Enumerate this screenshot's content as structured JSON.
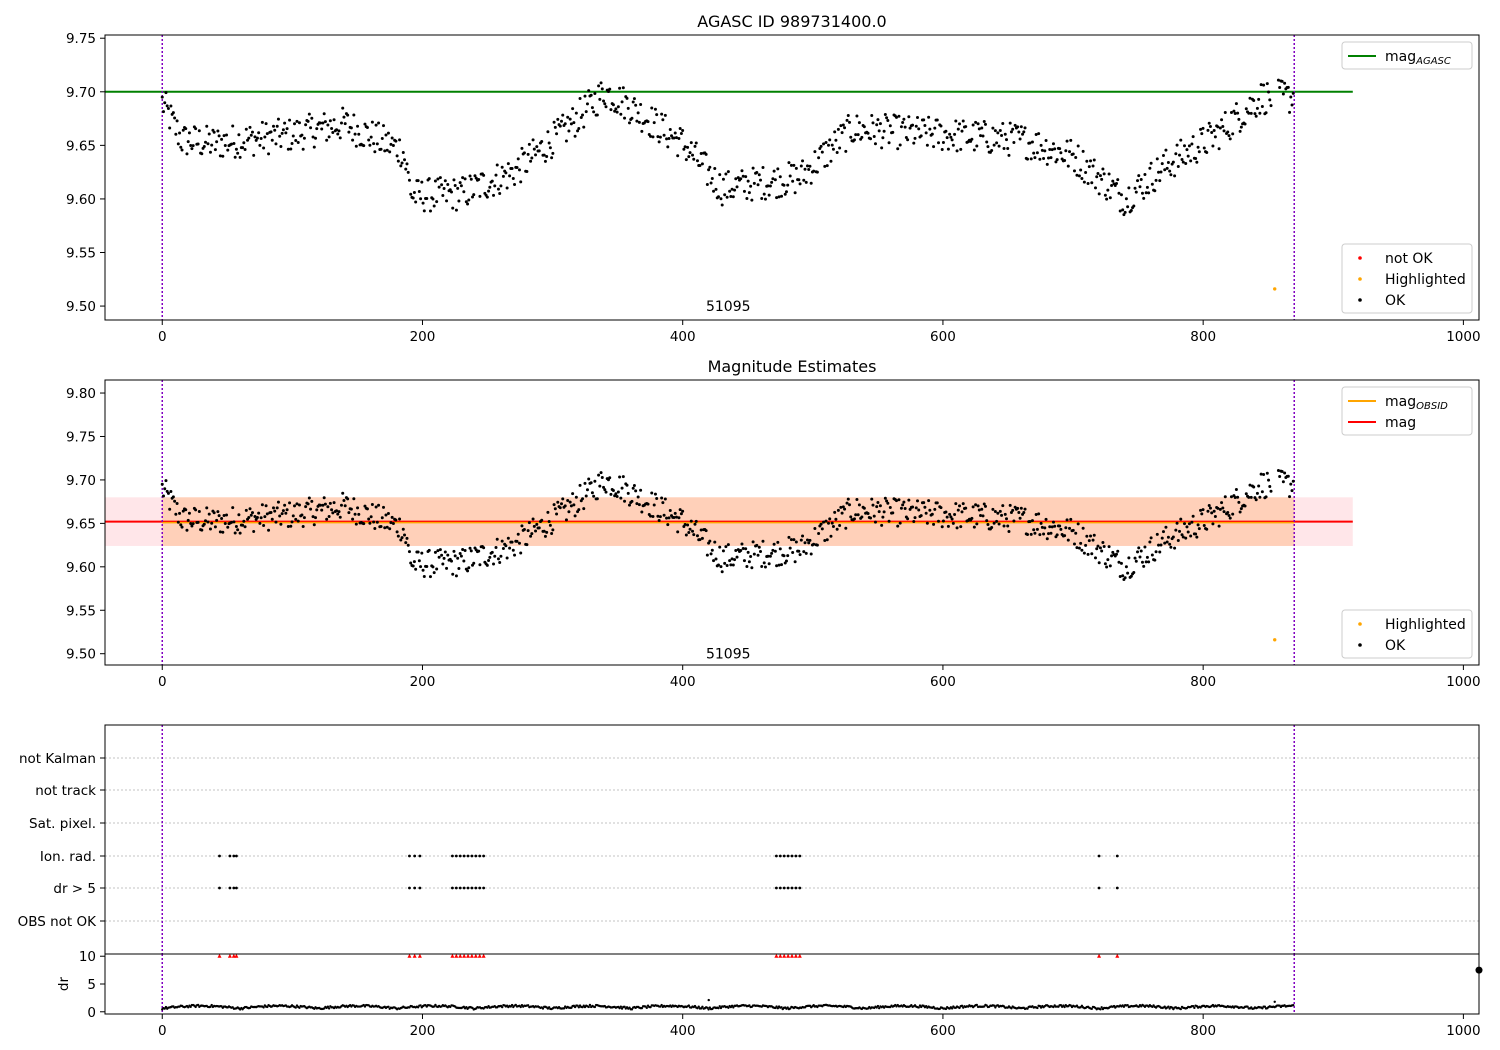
{
  "chart_data": [
    {
      "type": "scatter",
      "title": "AGASC ID 989731400.0",
      "xlim": [
        -44,
        1012
      ],
      "ylim": [
        9.487,
        9.753
      ],
      "xticks": [
        0,
        200,
        400,
        600,
        800,
        1000
      ],
      "yticks": [
        9.5,
        9.55,
        9.6,
        9.65,
        9.7,
        9.75
      ],
      "hlines": [
        {
          "name": "mag_AGASC",
          "y": 9.7,
          "x_range": [
            -44,
            915
          ],
          "color": "#008000"
        }
      ],
      "vlines": [
        0,
        870
      ],
      "vline_color": "#8000c0",
      "obs_label": {
        "text": "51095",
        "x": 435,
        "y": 9.5
      },
      "series": [
        {
          "name": "OK",
          "color": "#000000",
          "kind": "wave"
        },
        {
          "name": "Highlighted",
          "color": "#ffa500",
          "points": [
            [
              855,
              9.516
            ]
          ]
        },
        {
          "name": "not OK",
          "color": "#ff0000",
          "points": []
        }
      ],
      "legends": [
        {
          "position": "top-right",
          "entries": [
            {
              "label": "mag",
              "sub": "AGASC",
              "color": "#008000",
              "marker": "line"
            }
          ]
        },
        {
          "position": "bottom-right",
          "entries": [
            {
              "label": "not OK",
              "color": "#ff0000",
              "marker": "dot"
            },
            {
              "label": "Highlighted",
              "color": "#ffa500",
              "marker": "dot"
            },
            {
              "label": "OK",
              "color": "#000000",
              "marker": "dot"
            }
          ]
        }
      ]
    },
    {
      "type": "scatter",
      "title": "Magnitude Estimates",
      "xlim": [
        -44,
        1012
      ],
      "ylim": [
        9.487,
        9.815
      ],
      "xticks": [
        0,
        200,
        400,
        600,
        800,
        1000
      ],
      "yticks": [
        9.5,
        9.55,
        9.6,
        9.65,
        9.7,
        9.75,
        9.8
      ],
      "hlines": [
        {
          "name": "mag",
          "y": 9.652,
          "x_range": [
            -44,
            915
          ],
          "color": "#ff0000"
        }
      ],
      "bands": [
        {
          "name": "mag band",
          "y_range": [
            9.624,
            9.68
          ],
          "x_range": [
            -44,
            915
          ],
          "color": "#ffb6c1",
          "opacity": 0.35
        },
        {
          "name": "mag_OBSID band",
          "y_range": [
            9.624,
            9.68
          ],
          "x_range": [
            0,
            870
          ],
          "color": "#ffa560",
          "opacity": 0.35
        }
      ],
      "obsid_line": {
        "name": "mag_OBSID",
        "y": 9.652,
        "x_range": [
          0,
          870
        ],
        "color": "#ffa500"
      },
      "vlines": [
        0,
        870
      ],
      "vline_color": "#8000c0",
      "obs_label": {
        "text": "51095",
        "x": 435,
        "y": 9.5
      },
      "series": [
        {
          "name": "OK",
          "color": "#000000",
          "kind": "wave"
        },
        {
          "name": "Highlighted",
          "color": "#ffa500",
          "points": [
            [
              855,
              9.516
            ]
          ]
        }
      ],
      "legends": [
        {
          "position": "top-right",
          "entries": [
            {
              "label": "mag",
              "sub": "OBSID",
              "color": "#ffa500",
              "marker": "line"
            },
            {
              "label": "mag",
              "sub": "",
              "color": "#ff0000",
              "marker": "line"
            }
          ]
        },
        {
          "position": "bottom-right",
          "entries": [
            {
              "label": "Highlighted",
              "color": "#ffa500",
              "marker": "dot"
            },
            {
              "label": "OK",
              "color": "#000000",
              "marker": "dot"
            }
          ]
        }
      ]
    },
    {
      "type": "scatter",
      "title": "",
      "xlim": [
        -44,
        1012
      ],
      "categories": [
        "OBS not OK",
        "dr > 5",
        "Ion. rad.",
        "Sat. pixel.",
        "not track",
        "not Kalman"
      ],
      "flag_points": {
        "dr > 5": [
          44,
          52,
          55,
          57,
          190,
          194,
          198,
          223,
          226,
          229,
          232,
          235,
          238,
          241,
          244,
          247,
          472,
          475,
          478,
          481,
          484,
          487,
          490,
          720,
          734
        ],
        "Ion. rad.": [
          44,
          52,
          55,
          57,
          190,
          194,
          198,
          223,
          226,
          229,
          232,
          235,
          238,
          241,
          244,
          247,
          472,
          475,
          478,
          481,
          484,
          487,
          490,
          720,
          734
        ]
      },
      "vlines": [
        0,
        870
      ],
      "vline_color": "#8000c0"
    },
    {
      "type": "scatter",
      "title": "",
      "ylabel": "dr",
      "xlim": [
        -44,
        1012
      ],
      "ylim": [
        -0.4,
        10.4
      ],
      "xticks": [
        0,
        200,
        400,
        600,
        800,
        1000
      ],
      "yticks": [
        0,
        5,
        10
      ],
      "outlier_marks": [
        44,
        52,
        55,
        57,
        190,
        194,
        198,
        223,
        226,
        229,
        232,
        235,
        238,
        241,
        244,
        247,
        472,
        475,
        478,
        481,
        484,
        487,
        490,
        720,
        734
      ],
      "series": [
        {
          "name": "dr",
          "color": "#000000",
          "kind": "residual"
        }
      ],
      "vlines": [
        0,
        870
      ],
      "vline_color": "#8000c0"
    }
  ]
}
